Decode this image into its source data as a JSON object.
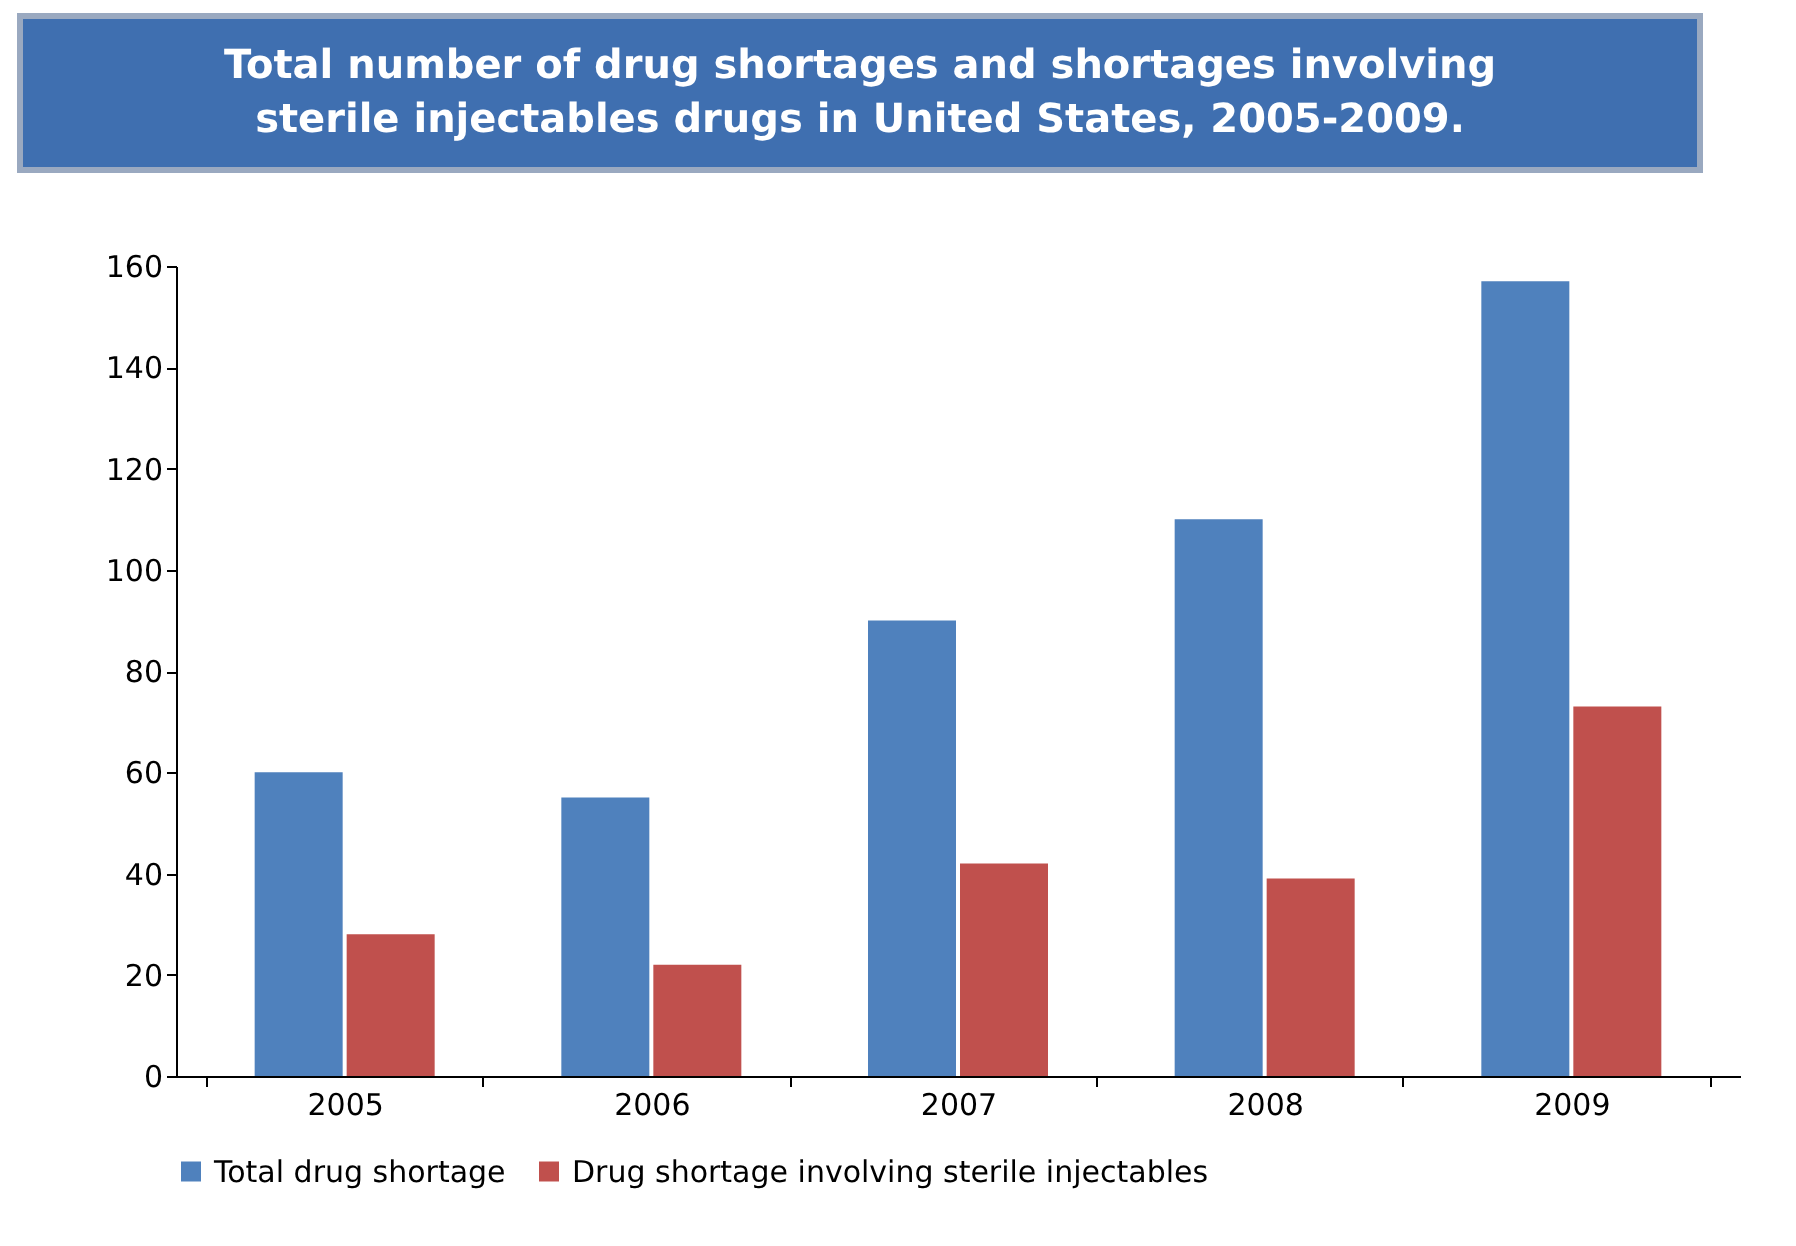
{
  "chart_data": {
    "type": "bar",
    "title": "Total number of drug shortages and shortages involving sterile injectables drugs in United States, 2005-2009.",
    "categories": [
      "2005",
      "2006",
      "2007",
      "2008",
      "2009"
    ],
    "series": [
      {
        "name": "Total drug shortage",
        "color": "#4f81bd",
        "values": [
          60,
          55,
          90,
          110,
          157
        ]
      },
      {
        "name": "Drug shortage involving sterile injectables",
        "color": "#c0504d",
        "values": [
          28,
          22,
          42,
          39,
          73
        ]
      }
    ],
    "ylim": [
      0,
      160
    ],
    "yticks": [
      0,
      20,
      40,
      60,
      80,
      100,
      120,
      140,
      160
    ],
    "grid": false,
    "legend": "bottom"
  }
}
